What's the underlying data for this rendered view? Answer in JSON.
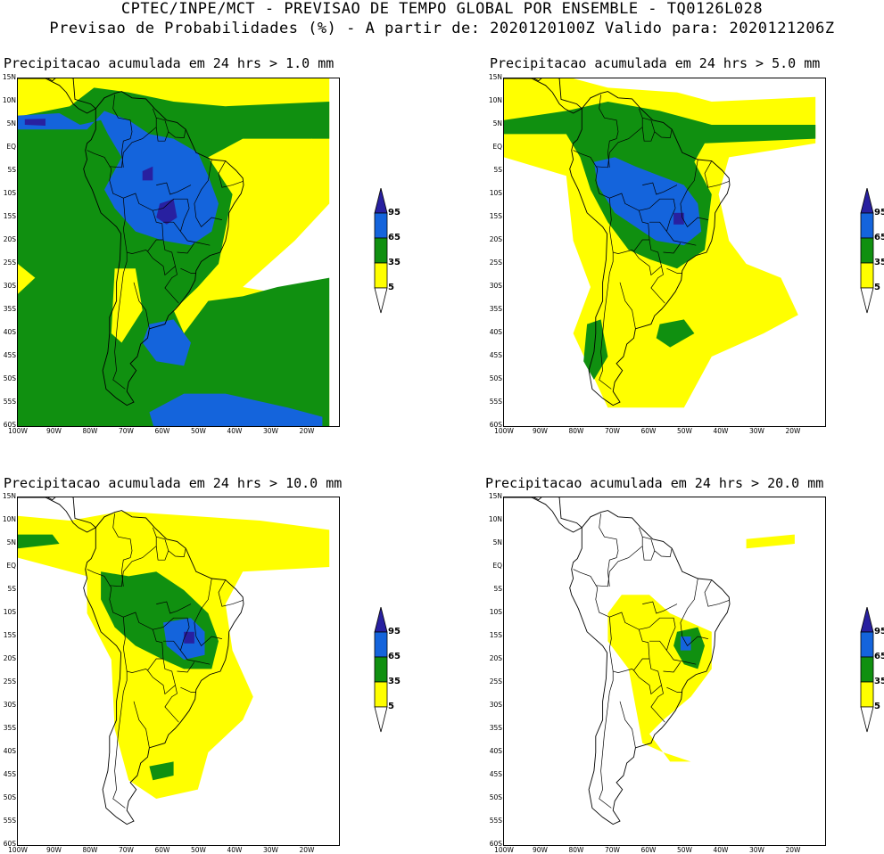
{
  "header": {
    "line1": "CPTEC/INPE/MCT - PREVISAO DE TEMPO GLOBAL POR ENSEMBLE - TQ0126L028",
    "line2": "Previsao de Probabilidades (%) -  A partir de: 2020120100Z  Valido para: 2020121206Z"
  },
  "colors": {
    "yellow": "#ffff00",
    "green": "#109010",
    "blue": "#1464dc",
    "purple": "#2820a0"
  },
  "axes": {
    "lat_labels": [
      "15N",
      "10N",
      "5N",
      "EQ",
      "5S",
      "10S",
      "15S",
      "20S",
      "25S",
      "30S",
      "35S",
      "40S",
      "45S",
      "50S",
      "55S",
      "60S"
    ],
    "lon_labels": [
      "100W",
      "90W",
      "80W",
      "70W",
      "60W",
      "50W",
      "40W",
      "30W",
      "20W"
    ]
  },
  "colorbar": {
    "labels": [
      "95",
      "65",
      "35",
      "5"
    ]
  },
  "panels": [
    {
      "title": "Precipitacao acumulada em 24 hrs > 1.0 mm",
      "threshold": "1.0"
    },
    {
      "title": "Precipitacao acumulada em 24 hrs > 5.0 mm",
      "threshold": "5.0"
    },
    {
      "title": "Precipitacao acumulada em 24 hrs > 10.0 mm",
      "threshold": "10.0"
    },
    {
      "title": "Precipitacao acumulada em 24 hrs > 20.0 mm",
      "threshold": "20.0"
    }
  ]
}
